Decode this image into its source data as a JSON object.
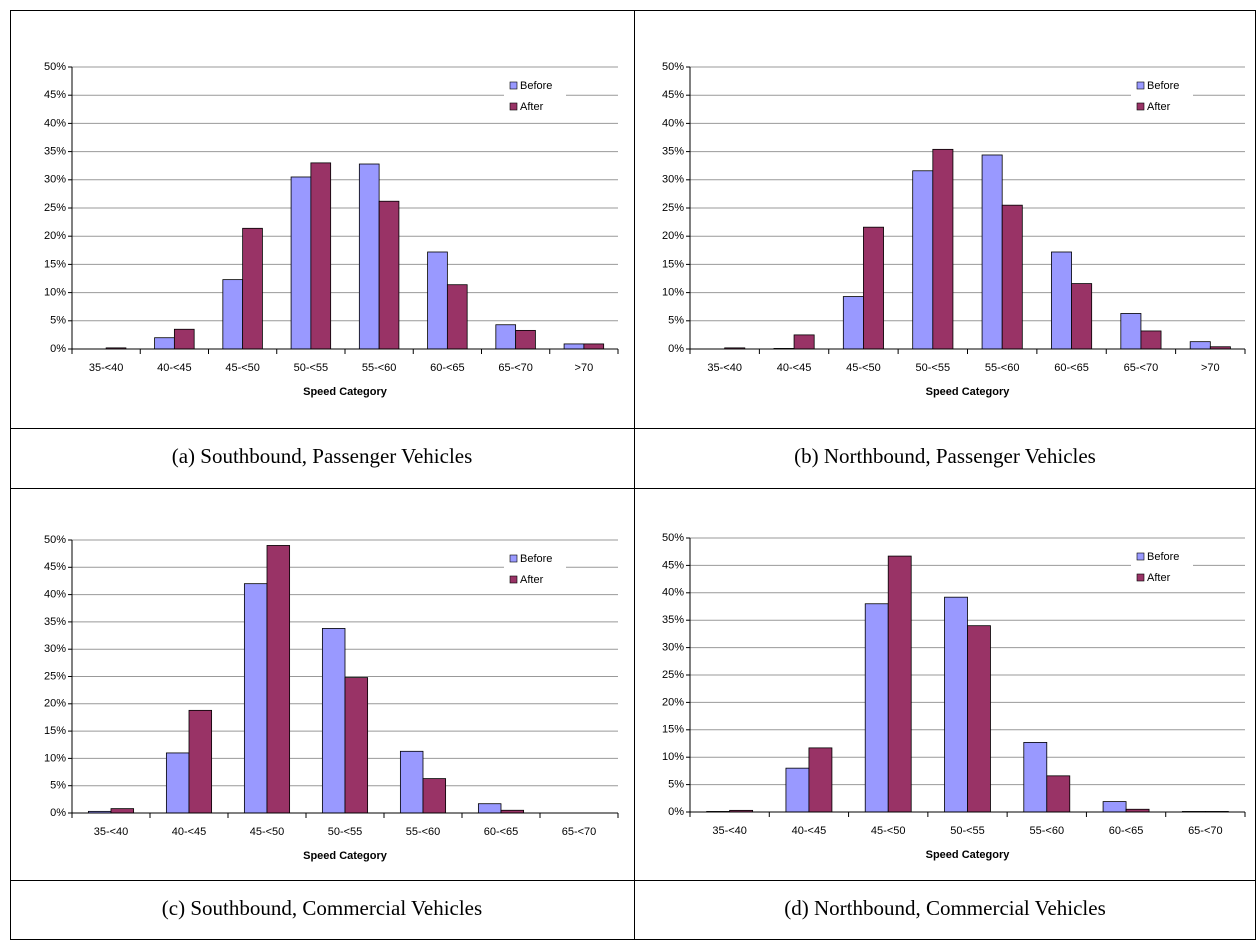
{
  "chart_data": [
    {
      "type": "bar",
      "caption": "(a) Southbound, Passenger Vehicles",
      "x_label": "Speed Category",
      "categories": [
        "35-<40",
        "40-<45",
        "45-<50",
        "50-<55",
        "55-<60",
        "60-<65",
        "65-<70",
        ">70"
      ],
      "series": [
        {
          "name": "Before",
          "color": "#9999ff",
          "values": [
            0,
            2,
            12.3,
            30.5,
            32.8,
            17.2,
            4.3,
            0.9
          ]
        },
        {
          "name": "After",
          "color": "#993366",
          "values": [
            0.2,
            3.5,
            21.4,
            33,
            26.2,
            11.4,
            3.3,
            0.9
          ]
        }
      ],
      "ylim": [
        0,
        50
      ],
      "yticks": [
        {
          "value": 0,
          "label": "0%"
        },
        {
          "value": 5,
          "label": "5%"
        },
        {
          "value": 10,
          "label": "10%"
        },
        {
          "value": 15,
          "label": "15%"
        },
        {
          "value": 20,
          "label": "20%"
        },
        {
          "value": 25,
          "label": "25%"
        },
        {
          "value": 30,
          "label": "30%"
        },
        {
          "value": 35,
          "label": "35%"
        },
        {
          "value": 40,
          "label": "40%"
        },
        {
          "value": 45,
          "label": "45%"
        },
        {
          "value": 50,
          "label": "50%"
        }
      ],
      "grid": true,
      "legend": "upper right"
    },
    {
      "type": "bar",
      "caption": "(b) Northbound, Passenger Vehicles",
      "x_label": "Speed Category",
      "categories": [
        "35-<40",
        "40-<45",
        "45-<50",
        "50-<55",
        "55-<60",
        "60-<65",
        "65-<70",
        ">70"
      ],
      "series": [
        {
          "name": "Before",
          "color": "#9999ff",
          "values": [
            0,
            0.1,
            9.3,
            31.6,
            34.4,
            17.2,
            6.3,
            1.3
          ]
        },
        {
          "name": "After",
          "color": "#993366",
          "values": [
            0.2,
            2.5,
            21.6,
            35.4,
            25.5,
            11.6,
            3.2,
            0.4
          ]
        }
      ],
      "ylim": [
        0,
        50
      ],
      "yticks": [
        {
          "value": 0,
          "label": "0%"
        },
        {
          "value": 5,
          "label": "5%"
        },
        {
          "value": 10,
          "label": "10%"
        },
        {
          "value": 15,
          "label": "15%"
        },
        {
          "value": 20,
          "label": "20%"
        },
        {
          "value": 25,
          "label": "25%"
        },
        {
          "value": 30,
          "label": "30%"
        },
        {
          "value": 35,
          "label": "35%"
        },
        {
          "value": 40,
          "label": "40%"
        },
        {
          "value": 45,
          "label": "45%"
        },
        {
          "value": 50,
          "label": "50%"
        }
      ],
      "grid": true,
      "legend": "upper right"
    },
    {
      "type": "bar",
      "caption": "(c) Southbound, Commercial Vehicles",
      "x_label": "Speed Category",
      "categories": [
        "35-<40",
        "40-<45",
        "45-<50",
        "50-<55",
        "55-<60",
        "60-<65",
        "65-<70"
      ],
      "series": [
        {
          "name": "Before",
          "color": "#9999ff",
          "values": [
            0.3,
            11,
            42,
            33.8,
            11.3,
            1.7,
            0
          ]
        },
        {
          "name": "After",
          "color": "#993366",
          "values": [
            0.8,
            18.8,
            49,
            24.8,
            6.3,
            0.5,
            0
          ]
        }
      ],
      "ylim": [
        0,
        50
      ],
      "yticks": [
        {
          "value": 0,
          "label": "0%"
        },
        {
          "value": 5,
          "label": "5%"
        },
        {
          "value": 10,
          "label": "10%"
        },
        {
          "value": 15,
          "label": "15%"
        },
        {
          "value": 20,
          "label": "20%"
        },
        {
          "value": 25,
          "label": "25%"
        },
        {
          "value": 30,
          "label": "30%"
        },
        {
          "value": 35,
          "label": "35%"
        },
        {
          "value": 40,
          "label": "40%"
        },
        {
          "value": 45,
          "label": "45%"
        },
        {
          "value": 50,
          "label": "50%"
        }
      ],
      "grid": true,
      "legend": "upper right"
    },
    {
      "type": "bar",
      "caption": "(d) Northbound, Commercial Vehicles",
      "x_label": "Speed Category",
      "categories": [
        "35-<40",
        "40-<45",
        "45-<50",
        "50-<55",
        "55-<60",
        "60-<65",
        "65-<70"
      ],
      "series": [
        {
          "name": "Before",
          "color": "#9999ff",
          "values": [
            0.1,
            8,
            38,
            39.2,
            12.7,
            1.9,
            0.1
          ]
        },
        {
          "name": "After",
          "color": "#993366",
          "values": [
            0.3,
            11.7,
            46.7,
            34,
            6.6,
            0.5,
            0.1
          ]
        }
      ],
      "ylim": [
        0,
        50
      ],
      "yticks": [
        {
          "value": 0,
          "label": "0%"
        },
        {
          "value": 5,
          "label": "5%"
        },
        {
          "value": 10,
          "label": "10%"
        },
        {
          "value": 15,
          "label": "15%"
        },
        {
          "value": 20,
          "label": "20%"
        },
        {
          "value": 25,
          "label": "25%"
        },
        {
          "value": 30,
          "label": "30%"
        },
        {
          "value": 35,
          "label": "35%"
        },
        {
          "value": 40,
          "label": "40%"
        },
        {
          "value": 45,
          "label": "45%"
        },
        {
          "value": 50,
          "label": "50%"
        }
      ],
      "grid": true,
      "legend": "upper right"
    }
  ]
}
